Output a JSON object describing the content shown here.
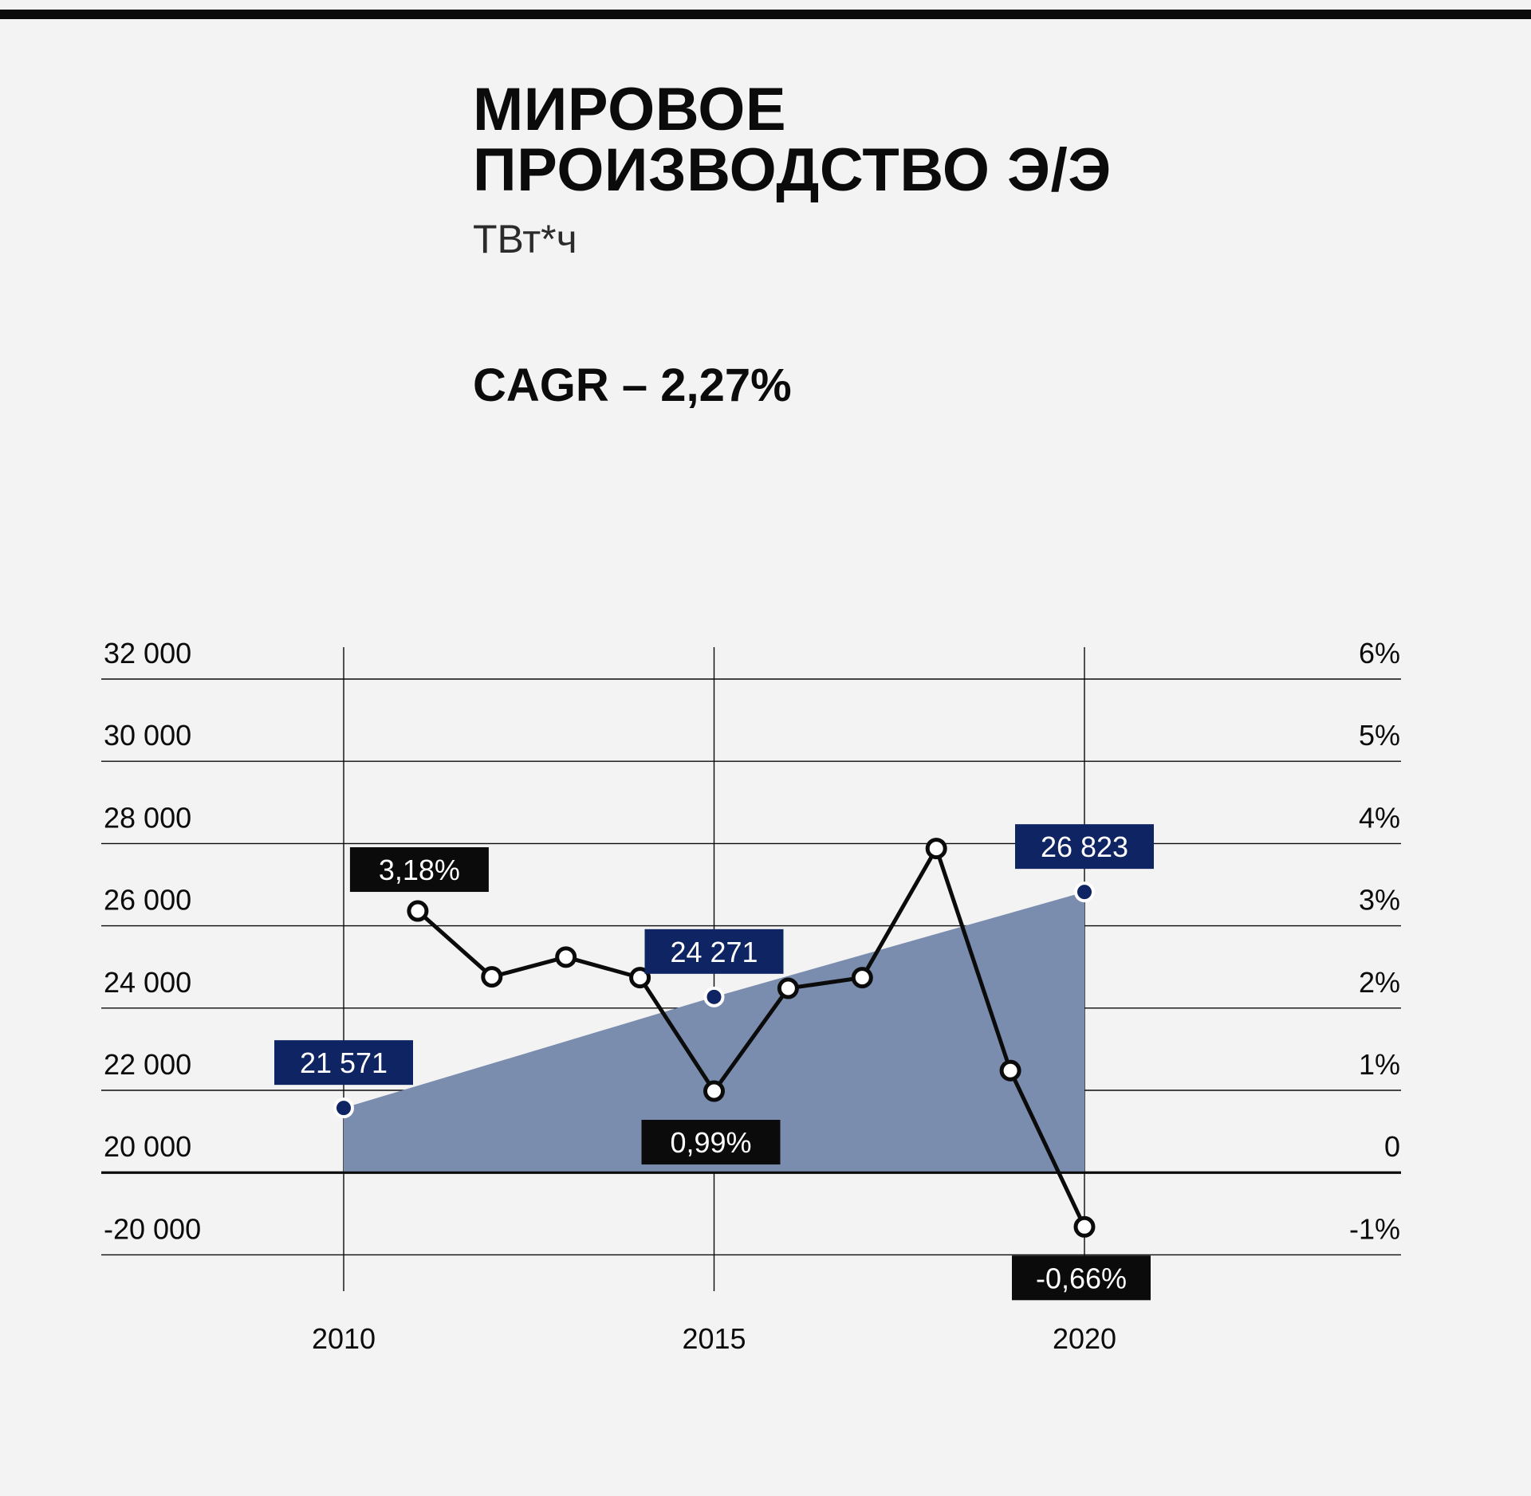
{
  "header": {
    "title_line1": "МИРОВОЕ",
    "title_line2": "ПРОИЗВОДСТВО Э/Э",
    "unit": "ТВт*ч",
    "cagr": "CAGR – 2,27%"
  },
  "colors": {
    "background": "#f3f3f3",
    "ink": "#0b0b0b",
    "navy": "#0f2463",
    "area_fill": "#7a8dae"
  },
  "chart_data": {
    "type": "line",
    "x_ticks": [
      "2010",
      "2015",
      "2020"
    ],
    "y_left_ticks": [
      "32 000",
      "30 000",
      "28 000",
      "26 000",
      "24 000",
      "22 000",
      "20 000",
      "-20 000"
    ],
    "y_right_ticks": [
      "6%",
      "5%",
      "4%",
      "3%",
      "2%",
      "1%",
      "0",
      "-1%"
    ],
    "y_right_range": [
      -1,
      6
    ],
    "grid": true,
    "series": [
      {
        "axis": "left",
        "style": "area",
        "x": [
          2010,
          2015,
          2020
        ],
        "values": [
          21571,
          24271,
          26823
        ],
        "labels": [
          "21 571",
          "24 271",
          "26 823"
        ]
      },
      {
        "axis": "right",
        "style": "line-markers",
        "x": [
          2011,
          2012,
          2013,
          2014,
          2015,
          2016,
          2017,
          2018,
          2019,
          2020
        ],
        "values": [
          3.18,
          2.38,
          2.62,
          2.37,
          0.99,
          2.24,
          2.37,
          3.94,
          1.24,
          -0.66
        ],
        "labels": [
          "3,18%",
          null,
          null,
          null,
          "0,99%",
          null,
          null,
          null,
          null,
          "-0,66%"
        ]
      }
    ]
  }
}
